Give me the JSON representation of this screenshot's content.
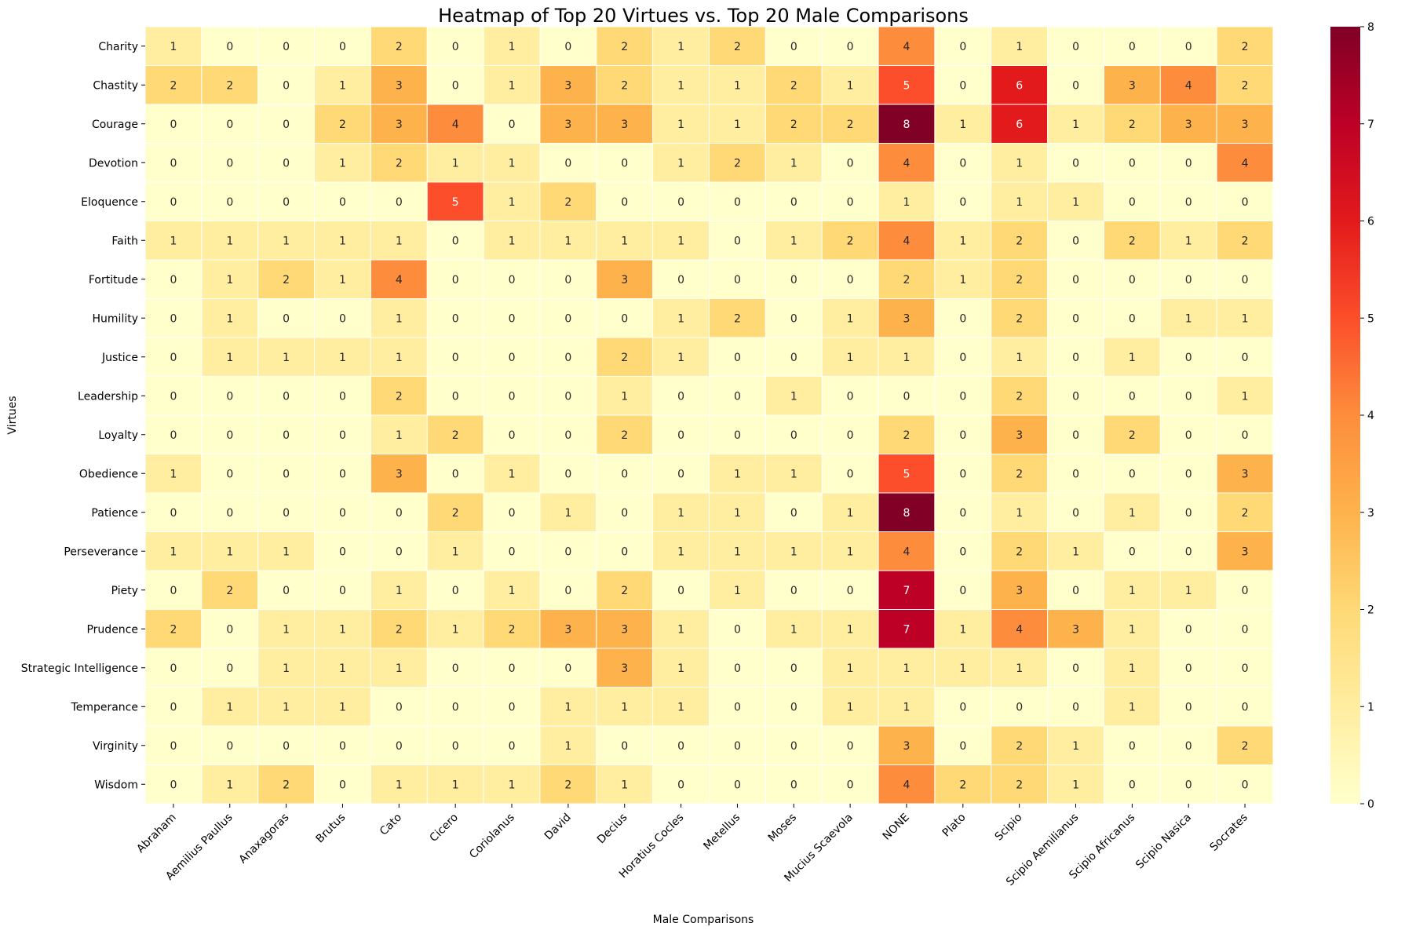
{
  "chart_data": {
    "type": "heatmap",
    "title": "Heatmap of Top 20 Virtues vs. Top 20 Male Comparisons",
    "xlabel": "Male Comparisons",
    "ylabel": "Virtues",
    "x_categories": [
      "Abraham",
      "Aemilius Paullus",
      "Anaxagoras",
      "Brutus",
      "Cato",
      "Cicero",
      "Coriolanus",
      "David",
      "Decius",
      "Horatius Cocles",
      "Metellus",
      "Moses",
      "Mucius Scaevola",
      "NONE",
      "Plato",
      "Scipio",
      "Scipio Aemilianus",
      "Scipio Africanus",
      "Scipio Nasica",
      "Socrates"
    ],
    "y_categories": [
      "Charity",
      "Chastity",
      "Courage",
      "Devotion",
      "Eloquence",
      "Faith",
      "Fortitude",
      "Humility",
      "Justice",
      "Leadership",
      "Loyalty",
      "Obedience",
      "Patience",
      "Perseverance",
      "Piety",
      "Prudence",
      "Strategic Intelligence",
      "Temperance",
      "Virginity",
      "Wisdom"
    ],
    "values": [
      [
        1,
        0,
        0,
        0,
        2,
        0,
        1,
        0,
        2,
        1,
        2,
        0,
        0,
        4,
        0,
        1,
        0,
        0,
        0,
        2
      ],
      [
        2,
        2,
        0,
        1,
        3,
        0,
        1,
        3,
        2,
        1,
        1,
        2,
        1,
        5,
        0,
        6,
        0,
        3,
        4,
        2
      ],
      [
        0,
        0,
        0,
        2,
        3,
        4,
        0,
        3,
        3,
        1,
        1,
        2,
        2,
        8,
        1,
        6,
        1,
        2,
        3,
        3
      ],
      [
        0,
        0,
        0,
        1,
        2,
        1,
        1,
        0,
        0,
        1,
        2,
        1,
        0,
        4,
        0,
        1,
        0,
        0,
        0,
        4
      ],
      [
        0,
        0,
        0,
        0,
        0,
        5,
        1,
        2,
        0,
        0,
        0,
        0,
        0,
        1,
        0,
        1,
        1,
        0,
        0,
        0
      ],
      [
        1,
        1,
        1,
        1,
        1,
        0,
        1,
        1,
        1,
        1,
        0,
        1,
        2,
        4,
        1,
        2,
        0,
        2,
        1,
        2
      ],
      [
        0,
        1,
        2,
        1,
        4,
        0,
        0,
        0,
        3,
        0,
        0,
        0,
        0,
        2,
        1,
        2,
        0,
        0,
        0,
        0
      ],
      [
        0,
        1,
        0,
        0,
        1,
        0,
        0,
        0,
        0,
        1,
        2,
        0,
        1,
        3,
        0,
        2,
        0,
        0,
        1,
        1
      ],
      [
        0,
        1,
        1,
        1,
        1,
        0,
        0,
        0,
        2,
        1,
        0,
        0,
        1,
        1,
        0,
        1,
        0,
        1,
        0,
        0
      ],
      [
        0,
        0,
        0,
        0,
        2,
        0,
        0,
        0,
        1,
        0,
        0,
        1,
        0,
        0,
        0,
        2,
        0,
        0,
        0,
        1
      ],
      [
        0,
        0,
        0,
        0,
        1,
        2,
        0,
        0,
        2,
        0,
        0,
        0,
        0,
        2,
        0,
        3,
        0,
        2,
        0,
        0
      ],
      [
        1,
        0,
        0,
        0,
        3,
        0,
        1,
        0,
        0,
        0,
        1,
        1,
        0,
        5,
        0,
        2,
        0,
        0,
        0,
        3
      ],
      [
        0,
        0,
        0,
        0,
        0,
        2,
        0,
        1,
        0,
        1,
        1,
        0,
        1,
        8,
        0,
        1,
        0,
        1,
        0,
        2
      ],
      [
        1,
        1,
        1,
        0,
        0,
        1,
        0,
        0,
        0,
        1,
        1,
        1,
        1,
        4,
        0,
        2,
        1,
        0,
        0,
        3
      ],
      [
        0,
        2,
        0,
        0,
        1,
        0,
        1,
        0,
        2,
        0,
        1,
        0,
        0,
        7,
        0,
        3,
        0,
        1,
        1,
        0
      ],
      [
        2,
        0,
        1,
        1,
        2,
        1,
        2,
        3,
        3,
        1,
        0,
        1,
        1,
        7,
        1,
        4,
        3,
        1,
        0,
        0
      ],
      [
        0,
        0,
        1,
        1,
        1,
        0,
        0,
        0,
        3,
        1,
        0,
        0,
        1,
        1,
        1,
        1,
        0,
        1,
        0,
        0
      ],
      [
        0,
        1,
        1,
        1,
        0,
        0,
        0,
        1,
        1,
        1,
        0,
        0,
        1,
        1,
        0,
        0,
        0,
        1,
        0,
        0
      ],
      [
        0,
        0,
        0,
        0,
        0,
        0,
        0,
        1,
        0,
        0,
        0,
        0,
        0,
        3,
        0,
        2,
        1,
        0,
        0,
        2
      ],
      [
        0,
        1,
        2,
        0,
        1,
        1,
        1,
        2,
        1,
        0,
        0,
        0,
        0,
        4,
        2,
        2,
        1,
        0,
        0,
        0
      ]
    ],
    "vmin": 0,
    "vmax": 8,
    "colormap": "YlOrRd",
    "colorbar_ticks": [
      0,
      1,
      2,
      3,
      4,
      5,
      6,
      7,
      8
    ],
    "annotations": true,
    "grid": false
  }
}
